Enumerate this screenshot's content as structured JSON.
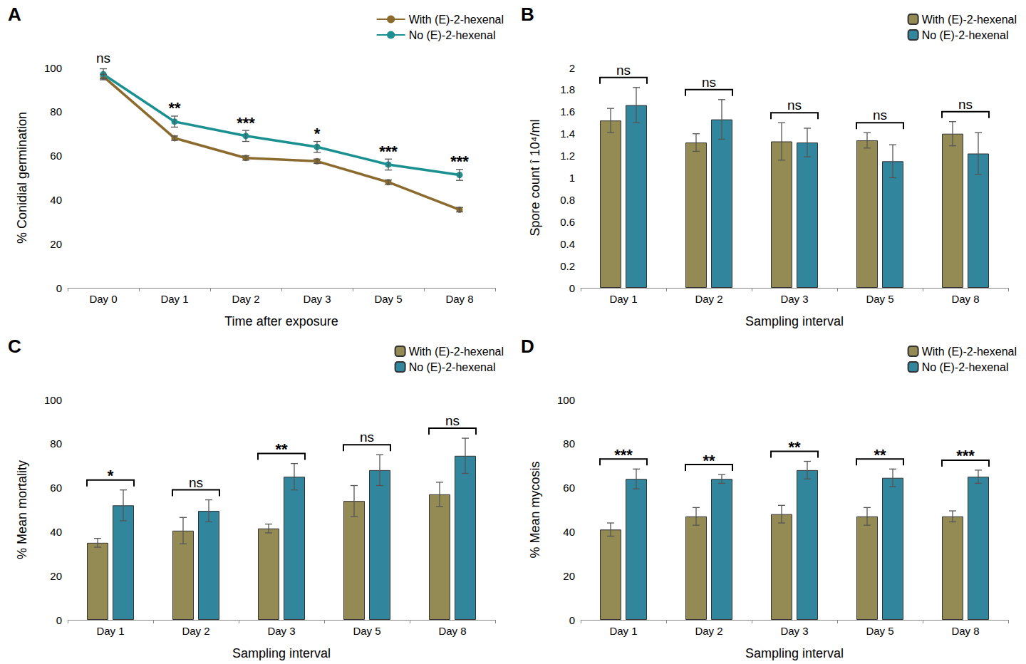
{
  "chart_data": [
    {
      "type": "line",
      "title": "A",
      "x_label": "Time after exposure",
      "y_label": "% Conidial germination",
      "categories": [
        "Day 0",
        "Day 1",
        "Day 2",
        "Day 3",
        "Day 5",
        "Day 8"
      ],
      "series": [
        {
          "name": "With (E)-2-hexenal",
          "color": "#8b6a2e",
          "marker": "circle",
          "values": [
            96,
            68,
            59,
            57.5,
            48,
            35.5
          ],
          "errors": [
            1,
            1,
            1,
            1,
            1,
            1
          ]
        },
        {
          "name": "No (E)-2-hexenal",
          "color": "#1a9090",
          "marker": "circle",
          "values": [
            97,
            75.5,
            69,
            64,
            56,
            51.3
          ],
          "errors": [
            2.5,
            2.5,
            2.5,
            2.5,
            2.5,
            2.5
          ]
        }
      ],
      "annotations": [
        "ns",
        "**",
        "***",
        "*",
        "***",
        "***"
      ],
      "ylim": [
        0,
        100
      ],
      "yticks": [
        0,
        20,
        40,
        60,
        80,
        100
      ],
      "grid": false,
      "legend": "top-right"
    },
    {
      "type": "bar",
      "title": "B",
      "x_label": "Sampling interval",
      "y_label": "Spore count î 10⁴/ml",
      "categories": [
        "Day 1",
        "Day 2",
        "Day 3",
        "Day 5",
        "Day 8"
      ],
      "series": [
        {
          "name": "With (E)-2-hexenal",
          "color": "#948a54",
          "values": [
            1.52,
            1.32,
            1.33,
            1.34,
            1.4
          ],
          "errors": [
            0.11,
            0.08,
            0.17,
            0.07,
            0.11
          ]
        },
        {
          "name": "No (E)-2-hexenal",
          "color": "#31859c",
          "values": [
            1.66,
            1.53,
            1.32,
            1.15,
            1.22
          ],
          "errors": [
            0.16,
            0.18,
            0.13,
            0.15,
            0.19
          ]
        }
      ],
      "annotations": [
        "ns",
        "ns",
        "ns",
        "ns",
        "ns"
      ],
      "ylim": [
        0,
        2
      ],
      "yticks": [
        0,
        0.2,
        0.4,
        0.6,
        0.8,
        1,
        1.2,
        1.4,
        1.6,
        1.8,
        2
      ],
      "grid": false,
      "legend": "top-right"
    },
    {
      "type": "bar",
      "title": "C",
      "x_label": "Sampling interval",
      "y_label": "% Mean mortality",
      "categories": [
        "Day 1",
        "Day 2",
        "Day 3",
        "Day 5",
        "Day 8"
      ],
      "series": [
        {
          "name": "With (E)-2-hexenal",
          "color": "#948a54",
          "values": [
            35,
            40.5,
            41.5,
            54,
            57
          ],
          "errors": [
            2,
            6,
            2,
            7,
            5.5
          ]
        },
        {
          "name": "No (E)-2-hexenal",
          "color": "#31859c",
          "values": [
            52,
            49.5,
            65,
            68,
            74.5
          ],
          "errors": [
            7,
            5,
            6,
            7,
            8
          ]
        }
      ],
      "annotations": [
        "*",
        "ns",
        "**",
        "ns",
        "ns"
      ],
      "ylim": [
        0,
        100
      ],
      "yticks": [
        0,
        20,
        40,
        60,
        80,
        100
      ],
      "grid": false,
      "legend": "top-right"
    },
    {
      "type": "bar",
      "title": "D",
      "x_label": "Sampling interval",
      "y_label": "% Mean mycosis",
      "categories": [
        "Day 1",
        "Day 2",
        "Day 3",
        "Day 5",
        "Day 8"
      ],
      "series": [
        {
          "name": "With (E)-2-hexenal",
          "color": "#948a54",
          "values": [
            41,
            47,
            48,
            47,
            47
          ],
          "errors": [
            3,
            4,
            4,
            4,
            2.5
          ]
        },
        {
          "name": "No (E)-2-hexenal",
          "color": "#31859c",
          "values": [
            64,
            64,
            68,
            64.5,
            65
          ],
          "errors": [
            4.5,
            2,
            4,
            4,
            3
          ]
        }
      ],
      "annotations": [
        "***",
        "**",
        "**",
        "**",
        "***"
      ],
      "ylim": [
        0,
        100
      ],
      "yticks": [
        0,
        20,
        40,
        60,
        80,
        100
      ],
      "grid": false,
      "legend": "top-right"
    }
  ]
}
